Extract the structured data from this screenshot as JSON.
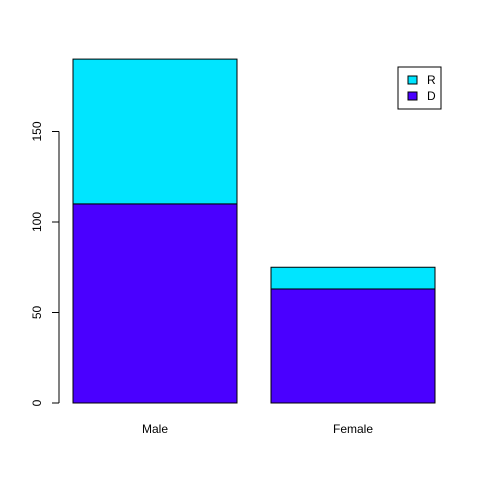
{
  "chart_data": {
    "type": "bar",
    "stacked": true,
    "categories": [
      "Male",
      "Female"
    ],
    "series": [
      {
        "name": "D",
        "values": [
          110,
          63
        ],
        "color": "#4a00ff"
      },
      {
        "name": "R",
        "values": [
          80,
          12
        ],
        "color": "#00e5ff"
      }
    ],
    "yticks": [
      0,
      50,
      100,
      150
    ],
    "ylim": [
      0,
      190
    ],
    "legend": {
      "position": "top-right",
      "entries": [
        {
          "label": "R",
          "color": "#00e5ff"
        },
        {
          "label": "D",
          "color": "#4a00ff"
        }
      ]
    }
  }
}
